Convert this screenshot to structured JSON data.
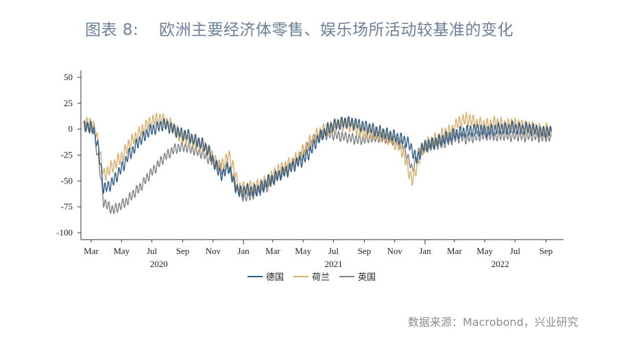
{
  "header": {
    "figure_label": "图表 8:",
    "title": "欧洲主要经济体零售、娱乐场所活动较基准的变化"
  },
  "footer": {
    "source": "数据来源：Macrobond，兴业研究"
  },
  "colors": {
    "title": "#6b7f99",
    "germany": "#2c5b87",
    "netherlands": "#d9ad6c",
    "uk": "#7f8083",
    "axis": "#333333"
  },
  "chart_data": {
    "type": "line",
    "title": "欧洲主要经济体零售、娱乐场所活动较基准的变化",
    "xlabel": "",
    "ylabel": "",
    "ylim": [
      -100,
      50
    ],
    "yticks": [
      50,
      25,
      0,
      -25,
      -50,
      -75,
      -100
    ],
    "x_start": "2020-02-15",
    "x_end": "2022-09-30",
    "xtick_labels": [
      {
        "label": "Mar",
        "date": "2020-03-01"
      },
      {
        "label": "May",
        "date": "2020-05-01"
      },
      {
        "label": "Jul",
        "date": "2020-07-01"
      },
      {
        "label": "Sep",
        "date": "2020-09-01"
      },
      {
        "label": "Nov",
        "date": "2020-11-01"
      },
      {
        "label": "Jan",
        "date": "2021-01-01"
      },
      {
        "label": "Mar",
        "date": "2021-03-01"
      },
      {
        "label": "May",
        "date": "2021-05-01"
      },
      {
        "label": "Jul",
        "date": "2021-07-01"
      },
      {
        "label": "Sep",
        "date": "2021-09-01"
      },
      {
        "label": "Nov",
        "date": "2021-11-01"
      },
      {
        "label": "Jan",
        "date": "2022-01-01"
      },
      {
        "label": "Mar",
        "date": "2022-03-01"
      },
      {
        "label": "May",
        "date": "2022-05-01"
      },
      {
        "label": "Jul",
        "date": "2022-07-01"
      },
      {
        "label": "Sep",
        "date": "2022-09-01"
      }
    ],
    "year_labels": [
      {
        "label": "2020",
        "date": "2020-07-15"
      },
      {
        "label": "2021",
        "date": "2021-07-01"
      },
      {
        "label": "2022",
        "date": "2022-06-01"
      }
    ],
    "grid": false,
    "legend_position": "bottom",
    "x_step_days": 10,
    "series": [
      {
        "name": "德国",
        "key": "germany",
        "amplitude": 7,
        "values": [
          2,
          3,
          0,
          -20,
          -58,
          -55,
          -50,
          -42,
          -35,
          -25,
          -20,
          -12,
          -8,
          -2,
          0,
          2,
          5,
          3,
          0,
          -3,
          -5,
          -6,
          -10,
          -12,
          -15,
          -20,
          -30,
          -40,
          -45,
          -35,
          -50,
          -60,
          -60,
          -58,
          -60,
          -58,
          -55,
          -50,
          -48,
          -45,
          -42,
          -40,
          -36,
          -32,
          -30,
          -25,
          -18,
          -10,
          -5,
          0,
          3,
          5,
          6,
          7,
          6,
          5,
          3,
          2,
          0,
          -2,
          -3,
          -5,
          -6,
          -8,
          -10,
          -12,
          -20,
          -30,
          -18,
          -15,
          -14,
          -12,
          -10,
          -8,
          -6,
          -4,
          -3,
          -2,
          -1,
          0,
          -1,
          -2,
          -1,
          0,
          1,
          0,
          2,
          1,
          0,
          1,
          0,
          -1,
          -3,
          -2,
          -3
        ]
      },
      {
        "name": "荷兰",
        "key": "netherlands",
        "amplitude": 8,
        "values": [
          4,
          6,
          2,
          -15,
          -45,
          -40,
          -35,
          -30,
          -25,
          -15,
          -10,
          -5,
          0,
          5,
          8,
          10,
          8,
          5,
          2,
          -5,
          -8,
          -10,
          -12,
          -15,
          -18,
          -20,
          -28,
          -35,
          -35,
          -25,
          -35,
          -55,
          -58,
          -58,
          -56,
          -55,
          -52,
          -50,
          -45,
          -40,
          -38,
          -35,
          -32,
          -28,
          -22,
          -15,
          -10,
          -5,
          -2,
          0,
          2,
          4,
          5,
          5,
          3,
          0,
          -2,
          -3,
          -4,
          -5,
          -6,
          -8,
          -10,
          -15,
          -20,
          -35,
          -50,
          -35,
          -20,
          -15,
          -12,
          -10,
          -6,
          -3,
          -2,
          5,
          8,
          10,
          8,
          5,
          4,
          3,
          5,
          6,
          4,
          3,
          5,
          4,
          3,
          2,
          1,
          0,
          -2,
          -1,
          -2
        ]
      },
      {
        "name": "英国",
        "key": "uk",
        "amplitude": 6,
        "values": [
          3,
          2,
          -2,
          -30,
          -70,
          -75,
          -78,
          -75,
          -72,
          -68,
          -62,
          -58,
          -52,
          -45,
          -40,
          -34,
          -28,
          -24,
          -20,
          -18,
          -17,
          -18,
          -20,
          -22,
          -24,
          -28,
          -32,
          -35,
          -40,
          -35,
          -45,
          -60,
          -65,
          -65,
          -63,
          -60,
          -58,
          -55,
          -50,
          -45,
          -42,
          -38,
          -34,
          -30,
          -25,
          -18,
          -12,
          -8,
          -6,
          -5,
          -5,
          -6,
          -7,
          -8,
          -9,
          -10,
          -10,
          -9,
          -8,
          -8,
          -8,
          -9,
          -10,
          -12,
          -15,
          -25,
          -40,
          -25,
          -20,
          -18,
          -16,
          -15,
          -14,
          -12,
          -10,
          -8,
          -8,
          -9,
          -8,
          -7,
          -6,
          -6,
          -6,
          -7,
          -6,
          -6,
          -7,
          -6,
          -7,
          -7,
          -6,
          -7,
          -8,
          -7,
          -8
        ]
      }
    ]
  },
  "legend": {
    "items": [
      {
        "label": "德国",
        "key": "germany"
      },
      {
        "label": "荷兰",
        "key": "netherlands"
      },
      {
        "label": "英国",
        "key": "uk"
      }
    ]
  }
}
